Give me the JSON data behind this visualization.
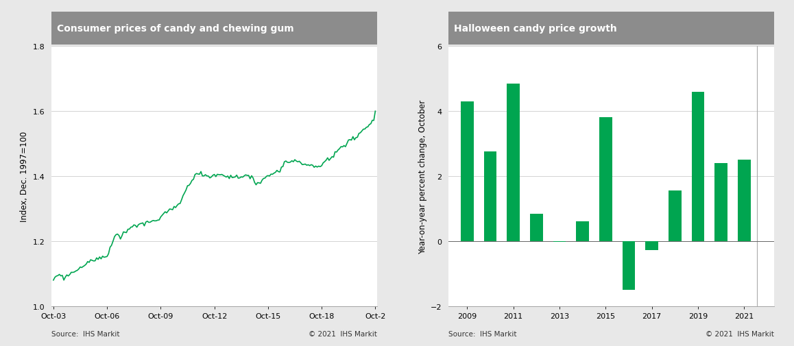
{
  "left_title": "Consumer prices of candy and chewing gum",
  "right_title": "Halloween candy price growth",
  "left_ylabel": "Index, Dec. 1997=100",
  "right_ylabel": "Year-on-year percent change, October",
  "left_source": "Source:  IHS Markit",
  "right_source": "Source:  IHS Markit",
  "left_copyright": "© 2021  IHS Markit",
  "right_copyright": "© 2021  IHS Markit",
  "left_ylim": [
    1.0,
    1.8
  ],
  "right_ylim": [
    -2.0,
    6.0
  ],
  "left_yticks": [
    1.0,
    1.2,
    1.4,
    1.6,
    1.8
  ],
  "right_yticks": [
    -2,
    0,
    2,
    4,
    6
  ],
  "left_xtick_labels": [
    "Oct-03",
    "Oct-06",
    "Oct-09",
    "Oct-12",
    "Oct-15",
    "Oct-18",
    "Oct-2"
  ],
  "right_xticks": [
    2009,
    2011,
    2013,
    2015,
    2017,
    2019,
    2021
  ],
  "line_color": "#00A550",
  "bar_color": "#00A550",
  "header_bg": "#8C8C8C",
  "header_text_color": "#ffffff",
  "bar_years": [
    2009,
    2010,
    2011,
    2012,
    2013,
    2014,
    2015,
    2016,
    2017,
    2018,
    2019,
    2020,
    2021
  ],
  "bar_values": [
    4.3,
    2.75,
    4.85,
    0.85,
    -0.02,
    0.6,
    3.82,
    -1.5,
    -0.28,
    1.55,
    4.6,
    2.4,
    2.5
  ],
  "bg_color": "#FFFFFF",
  "panel_bg": "#FFFFFF",
  "outer_bg": "#E8E8E8"
}
